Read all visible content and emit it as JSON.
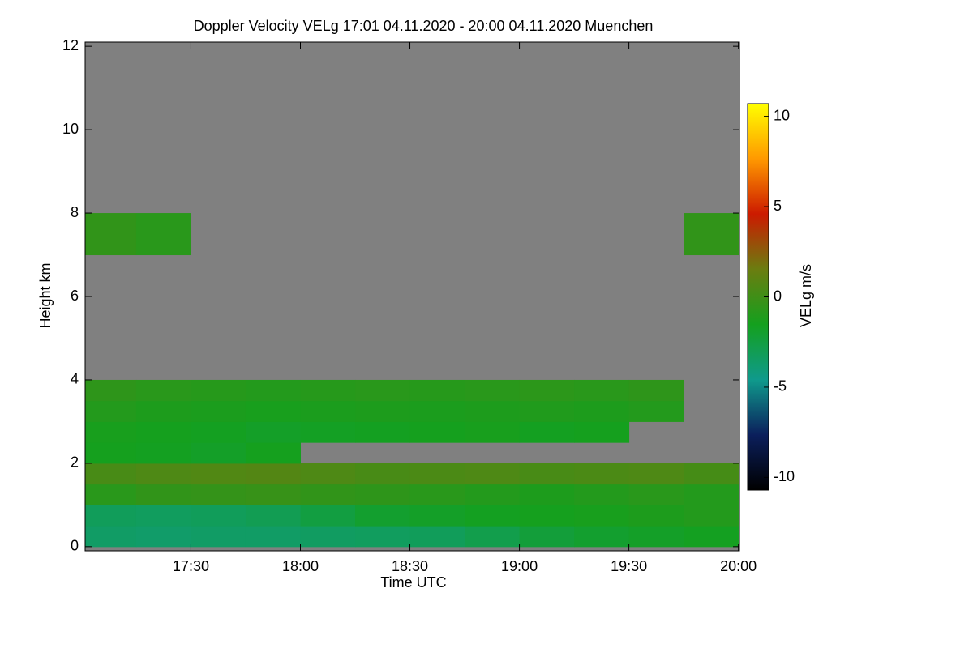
{
  "chart_data": {
    "type": "heatmap",
    "title": "Doppler Velocity VELg   17:01 04.11.2020 - 20:00 04.11.2020 Muenchen",
    "x_label": "Time UTC",
    "y_label": "Height km",
    "colorbar_label": "VELg m/s",
    "xlim": [
      17.017,
      20.005
    ],
    "ylim": [
      -0.1,
      12.1
    ],
    "xticks": [
      {
        "value": 17.5,
        "label": "17:30"
      },
      {
        "value": 18.0,
        "label": "18:00"
      },
      {
        "value": 18.5,
        "label": "18:30"
      },
      {
        "value": 19.0,
        "label": "19:00"
      },
      {
        "value": 19.5,
        "label": "19:30"
      },
      {
        "value": 20.0,
        "label": "20:00"
      }
    ],
    "yticks": [
      0,
      2,
      4,
      6,
      8,
      10,
      12
    ],
    "zlim": [
      -10.7,
      10.7
    ],
    "zticks": [
      -10,
      -5,
      0,
      5,
      10
    ],
    "colormap": [
      "#000000",
      "#0b1f5c",
      "#0f9a8c",
      "#14a01e",
      "#6b7d10",
      "#cc1a00",
      "#ff9900",
      "#ffff00"
    ],
    "missing_color": "#808080",
    "xbins": [
      17.0,
      17.25,
      17.5,
      17.75,
      18.0,
      18.25,
      18.5,
      18.75,
      19.0,
      19.25,
      19.5,
      19.75,
      20.0
    ],
    "ybins": [
      0,
      0.5,
      1,
      1.5,
      2,
      2.5,
      3,
      3.5,
      4,
      7,
      8
    ],
    "values": [
      [
        -3.5,
        -3.6,
        -3.5,
        -3.5,
        -3.4,
        -3.3,
        -3.2,
        -2.8,
        -2.3,
        -2.0,
        -1.8,
        -1.6
      ],
      [
        -3.2,
        -3.3,
        -3.2,
        -3.0,
        -2.5,
        -2.0,
        -1.8,
        -1.6,
        -1.5,
        -1.4,
        -1.2,
        -1.0
      ],
      [
        -0.8,
        -0.5,
        -0.4,
        -0.3,
        -0.5,
        -0.6,
        -0.8,
        -1.0,
        -1.2,
        -1.0,
        -0.8,
        -1.0
      ],
      [
        0.3,
        0.5,
        0.6,
        0.7,
        0.5,
        0.3,
        0.4,
        0.5,
        0.3,
        0.4,
        0.5,
        0.2
      ],
      [
        -1.5,
        -1.6,
        -1.8,
        -1.5,
        null,
        null,
        null,
        null,
        null,
        null,
        null,
        null
      ],
      [
        -1.4,
        -1.5,
        -1.6,
        -1.8,
        -1.7,
        -1.6,
        -1.5,
        -1.4,
        -1.6,
        -1.5,
        null,
        null
      ],
      [
        -1.0,
        -1.2,
        -1.3,
        -1.4,
        -1.3,
        -1.2,
        -1.3,
        -1.2,
        -1.1,
        -1.2,
        -1.0,
        null
      ],
      [
        -0.6,
        -0.8,
        -0.9,
        -1.0,
        -0.9,
        -0.8,
        -0.9,
        -0.8,
        -0.7,
        -0.8,
        -0.6,
        null
      ],
      [
        null,
        null,
        null,
        null,
        null,
        null,
        null,
        null,
        null,
        null,
        null,
        null
      ],
      [
        -0.5,
        -0.8,
        null,
        null,
        null,
        null,
        null,
        null,
        null,
        null,
        null,
        -0.5
      ]
    ]
  }
}
